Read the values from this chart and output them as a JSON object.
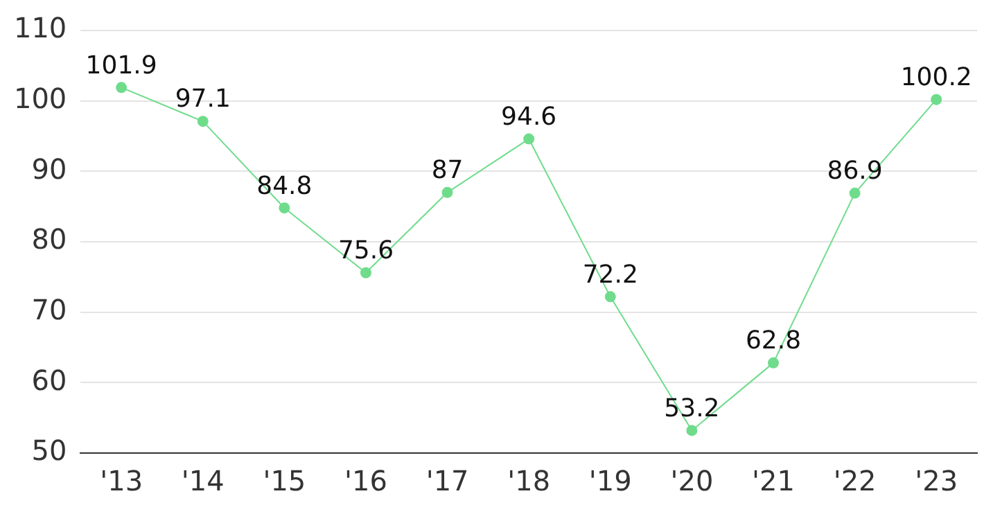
{
  "chart_data": {
    "type": "line",
    "categories": [
      "'13",
      "'14",
      "'15",
      "'16",
      "'17",
      "'18",
      "'19",
      "'20",
      "'21",
      "'22",
      "'23"
    ],
    "values": [
      101.9,
      97.1,
      84.8,
      75.6,
      87,
      94.6,
      72.2,
      53.2,
      62.8,
      86.9,
      100.2
    ],
    "color": "#6fdc8c",
    "ylim": [
      50,
      110
    ],
    "yticks": [
      50,
      60,
      70,
      80,
      90,
      100,
      110
    ],
    "grid": "y",
    "data_labels": true,
    "marker": "circle",
    "line_style": "solid"
  }
}
